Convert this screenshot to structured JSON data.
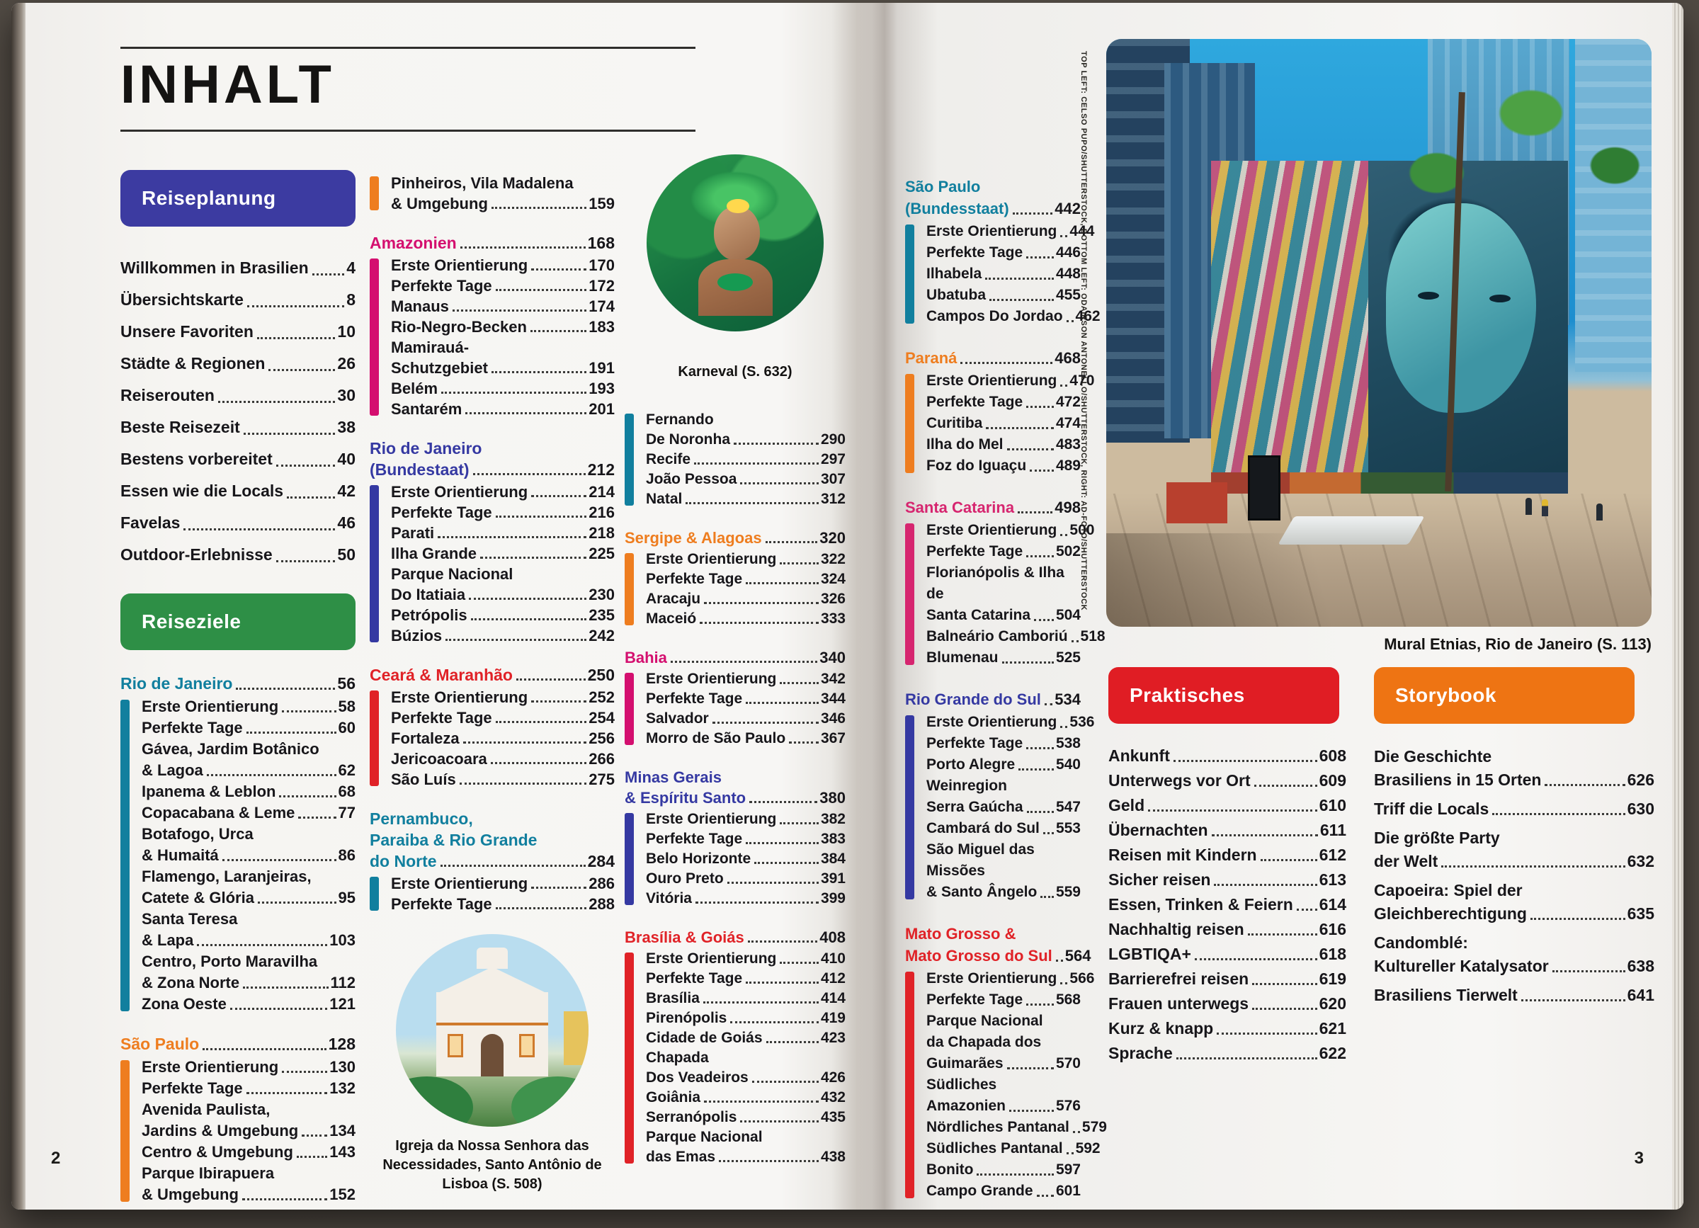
{
  "book": {
    "title": "INHALT",
    "page_number_left": "2",
    "page_number_right": "3"
  },
  "buttons": {
    "reiseplanung": "Reiseplanung",
    "reiseziele": "Reiseziele",
    "praktisches": "Praktisches",
    "storybook": "Storybook"
  },
  "colors": {
    "reiseplanung_badge": "#3c3ba1",
    "reiseziele_badge": "#2e8f46",
    "praktisches_badge": "#e01d24",
    "storybook_badge": "#ee7413",
    "teal": "#117f9e",
    "orange": "#ee7d1f",
    "magenta": "#d40f6f",
    "indigo": "#3539a2",
    "red": "#e02227",
    "pink": "#d6256f"
  },
  "planning_list": [
    {
      "lines": [
        "Willkommen in Brasilien"
      ],
      "page": "4"
    },
    {
      "lines": [
        "Übersichtskarte"
      ],
      "page": "8"
    },
    {
      "lines": [
        "Unsere Favoriten"
      ],
      "page": "10"
    },
    {
      "lines": [
        "Städte & Regionen"
      ],
      "page": "26"
    },
    {
      "lines": [
        "Reiserouten"
      ],
      "page": "30"
    },
    {
      "lines": [
        "Beste Reisezeit"
      ],
      "page": "38"
    },
    {
      "lines": [
        "Bestens vorbereitet"
      ],
      "page": "40"
    },
    {
      "lines": [
        "Essen wie die Locals"
      ],
      "page": "42"
    },
    {
      "lines": [
        "Favelas"
      ],
      "page": "46"
    },
    {
      "lines": [
        "Outdoor-Erlebnisse"
      ],
      "page": "50"
    }
  ],
  "columns": {
    "col1_sections": [
      {
        "title_lines": [
          "Rio de Janeiro"
        ],
        "page": "56",
        "color": "#117f9e",
        "items": [
          {
            "lines": [
              "Erste Orientierung"
            ],
            "page": "58"
          },
          {
            "lines": [
              "Perfekte Tage"
            ],
            "page": "60"
          },
          {
            "lines": [
              "Gávea, Jardim Botânico",
              "& Lagoa"
            ],
            "page": "62"
          },
          {
            "lines": [
              "Ipanema & Leblon"
            ],
            "page": "68"
          },
          {
            "lines": [
              "Copacabana & Leme"
            ],
            "page": "77"
          },
          {
            "lines": [
              "Botafogo, Urca",
              "& Humaitá"
            ],
            "page": "86"
          },
          {
            "lines": [
              "Flamengo, Laranjeiras,",
              "Catete & Glória"
            ],
            "page": "95"
          },
          {
            "lines": [
              "Santa Teresa",
              "& Lapa"
            ],
            "page": "103"
          },
          {
            "lines": [
              "Centro, Porto Maravilha",
              "& Zona Norte"
            ],
            "page": "112"
          },
          {
            "lines": [
              "Zona Oeste"
            ],
            "page": "121"
          }
        ]
      },
      {
        "title_lines": [
          "São Paulo"
        ],
        "page": "128",
        "color": "#ee7d1f",
        "items": [
          {
            "lines": [
              "Erste Orientierung"
            ],
            "page": "130"
          },
          {
            "lines": [
              "Perfekte Tage"
            ],
            "page": "132"
          },
          {
            "lines": [
              "Avenida Paulista,",
              "Jardins & Umgebung"
            ],
            "page": "134"
          },
          {
            "lines": [
              "Centro & Umgebung"
            ],
            "page": "143"
          },
          {
            "lines": [
              "Parque Ibirapuera",
              "& Umgebung"
            ],
            "page": "152"
          }
        ]
      }
    ],
    "col2_continuation": {
      "color": "#ee7d1f",
      "items": [
        {
          "lines": [
            "Pinheiros, Vila Madalena",
            "& Umgebung"
          ],
          "page": "159"
        }
      ]
    },
    "col2_sections": [
      {
        "title_lines": [
          "Amazonien"
        ],
        "page": "168",
        "color": "#d40f6f",
        "items": [
          {
            "lines": [
              "Erste Orientierung"
            ],
            "page": "170"
          },
          {
            "lines": [
              "Perfekte Tage"
            ],
            "page": "172"
          },
          {
            "lines": [
              "Manaus"
            ],
            "page": "174"
          },
          {
            "lines": [
              "Rio-Negro-Becken"
            ],
            "page": "183"
          },
          {
            "lines": [
              "Mamirauá-",
              "Schutzgebiet"
            ],
            "page": "191"
          },
          {
            "lines": [
              "Belém"
            ],
            "page": "193"
          },
          {
            "lines": [
              "Santarém"
            ],
            "page": "201"
          }
        ]
      },
      {
        "title_lines": [
          "Rio de Janeiro",
          "(Bundestaat)"
        ],
        "page": "212",
        "color": "#3539a2",
        "items": [
          {
            "lines": [
              "Erste Orientierung"
            ],
            "page": "214"
          },
          {
            "lines": [
              "Perfekte Tage"
            ],
            "page": "216"
          },
          {
            "lines": [
              "Parati"
            ],
            "page": "218"
          },
          {
            "lines": [
              "Ilha Grande"
            ],
            "page": "225"
          },
          {
            "lines": [
              "Parque Nacional",
              "Do Itatiaia"
            ],
            "page": "230"
          },
          {
            "lines": [
              "Petrópolis"
            ],
            "page": "235"
          },
          {
            "lines": [
              "Búzios"
            ],
            "page": "242"
          }
        ]
      },
      {
        "title_lines": [
          "Ceará & Maranhão"
        ],
        "page": "250",
        "color": "#e02227",
        "items": [
          {
            "lines": [
              "Erste Orientierung"
            ],
            "page": "252"
          },
          {
            "lines": [
              "Perfekte Tage"
            ],
            "page": "254"
          },
          {
            "lines": [
              "Fortaleza"
            ],
            "page": "256"
          },
          {
            "lines": [
              "Jericoacoara"
            ],
            "page": "266"
          },
          {
            "lines": [
              "São Luís"
            ],
            "page": "275"
          }
        ]
      },
      {
        "title_lines": [
          "Pernambuco,",
          "Paraiba & Rio Grande",
          "do Norte"
        ],
        "page": "284",
        "color": "#117f9e",
        "items": [
          {
            "lines": [
              "Erste Orientierung"
            ],
            "page": "286"
          },
          {
            "lines": [
              "Perfekte Tage"
            ],
            "page": "288"
          }
        ]
      }
    ],
    "col3_continuation": {
      "color": "#117f9e",
      "items": [
        {
          "lines": [
            "Fernando",
            "De Noronha"
          ],
          "page": "290"
        },
        {
          "lines": [
            "Recife"
          ],
          "page": "297"
        },
        {
          "lines": [
            "João Pessoa"
          ],
          "page": "307"
        },
        {
          "lines": [
            "Natal"
          ],
          "page": "312"
        }
      ]
    },
    "col3_sections": [
      {
        "title_lines": [
          "Sergipe & Alagoas"
        ],
        "page": "320",
        "color": "#ee7d1f",
        "items": [
          {
            "lines": [
              "Erste Orientierung"
            ],
            "page": "322"
          },
          {
            "lines": [
              "Perfekte Tage"
            ],
            "page": "324"
          },
          {
            "lines": [
              "Aracaju"
            ],
            "page": "326"
          },
          {
            "lines": [
              "Maceió"
            ],
            "page": "333"
          }
        ]
      },
      {
        "title_lines": [
          "Bahia"
        ],
        "page": "340",
        "color": "#d40f6f",
        "items": [
          {
            "lines": [
              "Erste Orientierung"
            ],
            "page": "342"
          },
          {
            "lines": [
              "Perfekte Tage"
            ],
            "page": "344"
          },
          {
            "lines": [
              "Salvador"
            ],
            "page": "346"
          },
          {
            "lines": [
              "Morro de São Paulo"
            ],
            "page": "367"
          }
        ]
      },
      {
        "title_lines": [
          "Minas Gerais",
          "& Espíritu Santo"
        ],
        "page": "380",
        "color": "#3539a2",
        "items": [
          {
            "lines": [
              "Erste Orientierung"
            ],
            "page": "382"
          },
          {
            "lines": [
              "Perfekte Tage"
            ],
            "page": "383"
          },
          {
            "lines": [
              "Belo Horizonte"
            ],
            "page": "384"
          },
          {
            "lines": [
              "Ouro Preto"
            ],
            "page": "391"
          },
          {
            "lines": [
              "Vitória"
            ],
            "page": "399"
          }
        ]
      },
      {
        "title_lines": [
          "Brasília & Goiás"
        ],
        "page": "408",
        "color": "#e02227",
        "items": [
          {
            "lines": [
              "Erste Orientierung"
            ],
            "page": "410"
          },
          {
            "lines": [
              "Perfekte Tage"
            ],
            "page": "412"
          },
          {
            "lines": [
              "Brasília"
            ],
            "page": "414"
          },
          {
            "lines": [
              "Pirenópolis"
            ],
            "page": "419"
          },
          {
            "lines": [
              "Cidade de Goiás"
            ],
            "page": "423"
          },
          {
            "lines": [
              "Chapada",
              "Dos Veadeiros"
            ],
            "page": "426"
          },
          {
            "lines": [
              "Goiânia"
            ],
            "page": "432"
          },
          {
            "lines": [
              "Serranópolis"
            ],
            "page": "435"
          },
          {
            "lines": [
              "Parque Nacional",
              "das Emas"
            ],
            "page": "438"
          }
        ]
      }
    ],
    "col4_sections": [
      {
        "title_lines": [
          "São Paulo",
          "(Bundesstaat)"
        ],
        "page": "442",
        "color": "#117f9e",
        "items": [
          {
            "lines": [
              "Erste Orientierung"
            ],
            "page": "444"
          },
          {
            "lines": [
              "Perfekte Tage"
            ],
            "page": "446"
          },
          {
            "lines": [
              "Ilhabela"
            ],
            "page": "448"
          },
          {
            "lines": [
              "Ubatuba"
            ],
            "page": "455"
          },
          {
            "lines": [
              "Campos Do Jordao"
            ],
            "page": "462"
          }
        ]
      },
      {
        "title_lines": [
          "Paraná"
        ],
        "page": "468",
        "color": "#ee7d1f",
        "items": [
          {
            "lines": [
              "Erste Orientierung"
            ],
            "page": "470"
          },
          {
            "lines": [
              "Perfekte Tage"
            ],
            "page": "472"
          },
          {
            "lines": [
              "Curitiba"
            ],
            "page": "474"
          },
          {
            "lines": [
              "Ilha do Mel"
            ],
            "page": "483"
          },
          {
            "lines": [
              "Foz do Iguaçu"
            ],
            "page": "489"
          }
        ]
      },
      {
        "title_lines": [
          "Santa Catarina"
        ],
        "page": "498",
        "color": "#d6256f",
        "items": [
          {
            "lines": [
              "Erste Orientierung"
            ],
            "page": "500"
          },
          {
            "lines": [
              "Perfekte Tage"
            ],
            "page": "502"
          },
          {
            "lines": [
              "Florianópolis & Ilha de",
              "Santa Catarina"
            ],
            "page": "504"
          },
          {
            "lines": [
              "Balneário Camboriú"
            ],
            "page": "518"
          },
          {
            "lines": [
              "Blumenau"
            ],
            "page": "525"
          }
        ]
      },
      {
        "title_lines": [
          "Rio Grande do Sul"
        ],
        "page": "534",
        "color": "#3539a2",
        "items": [
          {
            "lines": [
              "Erste Orientierung"
            ],
            "page": "536"
          },
          {
            "lines": [
              "Perfekte Tage"
            ],
            "page": "538"
          },
          {
            "lines": [
              "Porto Alegre"
            ],
            "page": "540"
          },
          {
            "lines": [
              "Weinregion",
              "Serra Gaúcha"
            ],
            "page": "547"
          },
          {
            "lines": [
              "Cambará do Sul"
            ],
            "page": "553"
          },
          {
            "lines": [
              "São Miguel das Missões",
              "& Santo Ângelo"
            ],
            "page": "559"
          }
        ]
      },
      {
        "title_lines": [
          "Mato Grosso &",
          "Mato Grosso do Sul"
        ],
        "page": "564",
        "color": "#e02227",
        "items": [
          {
            "lines": [
              "Erste Orientierung"
            ],
            "page": "566"
          },
          {
            "lines": [
              "Perfekte Tage"
            ],
            "page": "568"
          },
          {
            "lines": [
              "Parque Nacional",
              "da Chapada dos",
              "Guimarães"
            ],
            "page": "570"
          },
          {
            "lines": [
              "Südliches",
              "Amazonien"
            ],
            "page": "576"
          },
          {
            "lines": [
              "Nördliches Pantanal"
            ],
            "page": "579"
          },
          {
            "lines": [
              "Südliches Pantanal"
            ],
            "page": "592"
          },
          {
            "lines": [
              "Bonito"
            ],
            "page": "597"
          },
          {
            "lines": [
              "Campo Grande"
            ],
            "page": "601"
          }
        ]
      }
    ]
  },
  "captions": {
    "church": "Igreja da Nossa Senhora das Necessidades, Santo Antônio de Lisboa (S. 508)",
    "karneval": "Karneval (S. 632)",
    "mural": "Mural Etnias, Rio de Janeiro (S. 113)"
  },
  "photo_credit": "TOP LEFT: CELSO PUPO/SHUTTERSTOCK, BOTTOM LEFT: ODAIRSON ANTONELLO/SHUTTERSTOCK, RIGHT: AD-FOTO/SHUTTERSTOCK",
  "practical_list": [
    {
      "lines": [
        "Ankunft"
      ],
      "page": "608"
    },
    {
      "lines": [
        "Unterwegs vor Ort"
      ],
      "page": "609"
    },
    {
      "lines": [
        "Geld"
      ],
      "page": "610"
    },
    {
      "lines": [
        "Übernachten"
      ],
      "page": "611"
    },
    {
      "lines": [
        "Reisen mit Kindern"
      ],
      "page": "612"
    },
    {
      "lines": [
        "Sicher reisen"
      ],
      "page": "613"
    },
    {
      "lines": [
        "Essen, Trinken & Feiern"
      ],
      "page": "614"
    },
    {
      "lines": [
        "Nachhaltig reisen"
      ],
      "page": "616"
    },
    {
      "lines": [
        "LGBTIQA+"
      ],
      "page": "618"
    },
    {
      "lines": [
        "Barrierefrei reisen"
      ],
      "page": "619"
    },
    {
      "lines": [
        "Frauen unterwegs"
      ],
      "page": "620"
    },
    {
      "lines": [
        "Kurz & knapp"
      ],
      "page": "621"
    },
    {
      "lines": [
        "Sprache"
      ],
      "page": "622"
    }
  ],
  "storybook_list": [
    {
      "lines": [
        "Die Geschichte",
        "Brasiliens in 15 Orten"
      ],
      "page": "626"
    },
    {
      "lines": [
        "Triff die Locals"
      ],
      "page": "630"
    },
    {
      "lines": [
        "Die größte Party",
        "der Welt"
      ],
      "page": "632"
    },
    {
      "lines": [
        "Capoeira: Spiel der",
        "Gleichberechtigung"
      ],
      "page": "635"
    },
    {
      "lines": [
        "Candomblé:",
        "Kultureller Katalysator"
      ],
      "page": "638"
    },
    {
      "lines": [
        "Brasiliens Tierwelt"
      ],
      "page": "641"
    }
  ]
}
